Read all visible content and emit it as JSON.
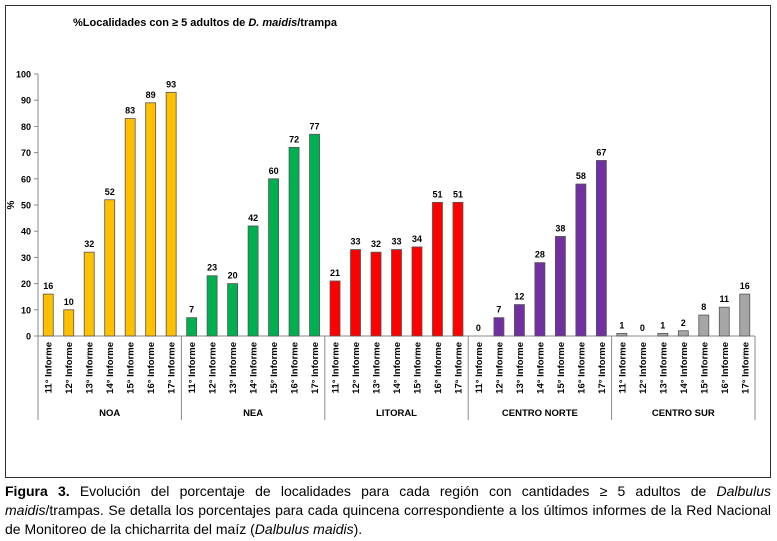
{
  "chart_data": {
    "type": "bar",
    "title_parts": [
      "%Localidades con ≥ 5 adultos de ",
      "D. maidis",
      "/trampa"
    ],
    "ylabel": "%",
    "ylim": [
      0,
      100
    ],
    "yticks": [
      0,
      10,
      20,
      30,
      40,
      50,
      60,
      70,
      80,
      90,
      100
    ],
    "grid": false,
    "legend": "none",
    "categories": [
      "11° Informe",
      "12° Informe",
      "13° Informe",
      "14° Informe",
      "15° Informe",
      "16° Informe",
      "17° Informe"
    ],
    "groups": [
      {
        "name": "NOA",
        "color": "#FFC000",
        "values": [
          16,
          10,
          32,
          52,
          83,
          89,
          93
        ]
      },
      {
        "name": "NEA",
        "color": "#00B050",
        "values": [
          7,
          23,
          20,
          42,
          60,
          72,
          77
        ]
      },
      {
        "name": "LITORAL",
        "color": "#FF0000",
        "values": [
          21,
          33,
          32,
          33,
          34,
          51,
          51
        ]
      },
      {
        "name": "CENTRO NORTE",
        "color": "#7030A0",
        "values": [
          0,
          7,
          12,
          28,
          38,
          58,
          67
        ]
      },
      {
        "name": "CENTRO SUR",
        "color": "#A6A6A6",
        "values": [
          1,
          0,
          1,
          2,
          8,
          11,
          16
        ]
      }
    ]
  },
  "caption": {
    "label": "Figura 3.",
    "t1": " Evolución del porcentaje de localidades para cada región con cantidades ≥ 5 adultos de ",
    "i1": "Dalbulus maidis",
    "t2": "/trampas. Se detalla los porcentajes para cada quincena correspondiente a los últimos informes de la Red Nacional de Monitoreo de la chicharrita del maíz (",
    "i2": "Dalbulus maidis",
    "t3": ")."
  }
}
